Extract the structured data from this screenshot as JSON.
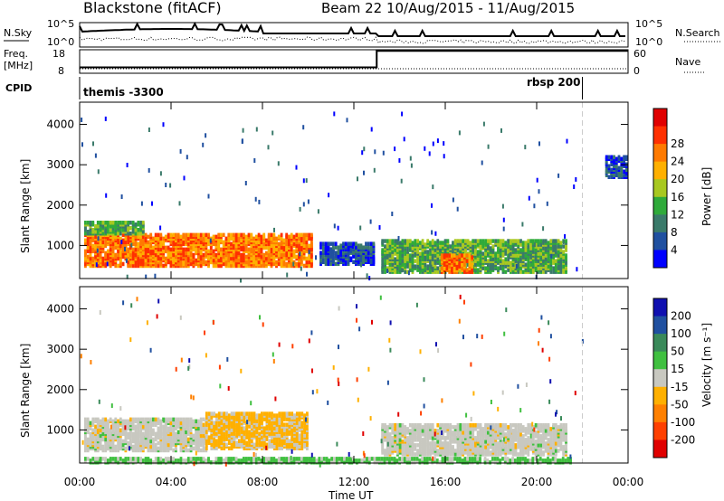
{
  "header": {
    "station": "Blackstone (fitACF)",
    "beam_date": "Beam 22  10/Aug/2015 - 11/Aug/2015"
  },
  "summary": {
    "nsky_label": "N.Sky",
    "nsky_ticks": [
      "10^5",
      "10^0"
    ],
    "nsearch_ticks": [
      "10^5",
      "10^0"
    ],
    "nsearch_label": "N.Search",
    "freq_label_1": "Freq.",
    "freq_label_2": "[MHz]",
    "freq_ticks": [
      "18",
      "8"
    ],
    "nave_ticks": [
      "60",
      "0"
    ],
    "nave_label": "Nave",
    "cpid_label": "CPID",
    "cpid_1": "themis -3300",
    "cpid_2": "rbsp 200"
  },
  "colors": {
    "power": [
      "#0000ff",
      "#2050a0",
      "#3a7a6a",
      "#2faa3a",
      "#a8c820",
      "#ffb000",
      "#ff7a00",
      "#ff3000",
      "#e00000"
    ],
    "velocity": [
      "#1010b0",
      "#2050a0",
      "#3a8a5a",
      "#40c040",
      "#c8c8c0",
      "#ffb000",
      "#ff8000",
      "#ff4000",
      "#e00000"
    ]
  },
  "chart_data": [
    {
      "type": "heatmap",
      "title": "Power",
      "xlabel": "",
      "ylabel": "Slant Range [km]",
      "xlim": [
        "00:00",
        "24:00"
      ],
      "ylim": [
        180,
        4550
      ],
      "x_ticks": [
        "00:00",
        "04:00",
        "08:00",
        "12:00",
        "16:00",
        "20:00",
        "00:00"
      ],
      "y_ticks": [
        "1000",
        "2000",
        "3000",
        "4000"
      ],
      "colorbar_label": "Power [dB]",
      "colorbar_ticks": [
        "4",
        "8",
        "12",
        "16",
        "20",
        "24",
        "28"
      ],
      "regions": [
        {
          "t0": 0.2,
          "t1": 10.2,
          "r0": 500,
          "r1": 1300,
          "level": "strong"
        },
        {
          "t0": 0.2,
          "t1": 2.8,
          "r0": 1300,
          "r1": 1600,
          "level": "medium"
        },
        {
          "t0": 10.5,
          "t1": 12.9,
          "r0": 550,
          "r1": 1050,
          "level": "weak"
        },
        {
          "t0": 13.2,
          "t1": 21.3,
          "r0": 350,
          "r1": 1150,
          "level": "medium"
        },
        {
          "t0": 15.8,
          "t1": 17.2,
          "r0": 350,
          "r1": 800,
          "level": "strong"
        },
        {
          "t0": 23.0,
          "t1": 23.9,
          "r0": 2700,
          "r1": 3200,
          "level": "weak"
        }
      ]
    },
    {
      "type": "heatmap",
      "title": "Velocity",
      "xlabel": "Time UT",
      "ylabel": "Slant Range [km]",
      "xlim": [
        "00:00",
        "24:00"
      ],
      "ylim": [
        180,
        4550
      ],
      "x_ticks": [
        "00:00",
        "04:00",
        "08:00",
        "12:00",
        "16:00",
        "20:00",
        "00:00"
      ],
      "y_ticks": [
        "1000",
        "2000",
        "3000",
        "4000"
      ],
      "colorbar_label": "Velocity [m s⁻¹]",
      "colorbar_ticks": [
        "200",
        "100",
        "50",
        "15",
        "-15",
        "-50",
        "-100",
        "-200"
      ],
      "regions": [
        {
          "t0": 0.2,
          "t1": 5.5,
          "r0": 500,
          "r1": 1300,
          "level": "ground"
        },
        {
          "t0": 5.5,
          "t1": 10.0,
          "r0": 550,
          "r1": 1450,
          "level": "away"
        },
        {
          "t0": 13.2,
          "t1": 21.3,
          "r0": 400,
          "r1": 1150,
          "level": "ground"
        },
        {
          "t0": 0.2,
          "t1": 21.5,
          "r0": 200,
          "r1": 330,
          "level": "low"
        }
      ]
    }
  ],
  "summary_data": {
    "nsky_level": 0.75,
    "nsearch_level": 0.2,
    "freq_step_hour": 13.0,
    "freq_before": 10.5,
    "freq_after": 17.5,
    "cpid_change_hour": 22.0
  }
}
